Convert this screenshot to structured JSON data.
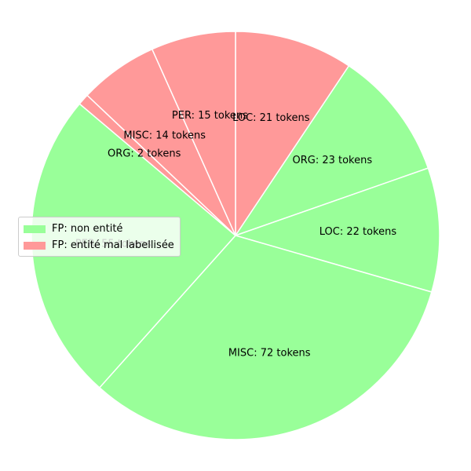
{
  "chart_data": {
    "type": "pie",
    "start_angle_deg": 90,
    "direction": "clockwise",
    "slices": [
      {
        "label": "LOC: 21 tokens",
        "value": 21,
        "group": 1
      },
      {
        "label": "ORG: 23 tokens",
        "value": 23,
        "group": 0
      },
      {
        "label": "LOC: 22 tokens",
        "value": 22,
        "group": 0
      },
      {
        "label": "MISC: 72 tokens",
        "value": 72,
        "group": 0
      },
      {
        "label": "PER: 55 tokens",
        "value": 55,
        "group": 0
      },
      {
        "label": "ORG: 2 tokens",
        "value": 2,
        "group": 1
      },
      {
        "label": "MISC: 14 tokens",
        "value": 14,
        "group": 1
      },
      {
        "label": "PER: 15 tokens",
        "value": 15,
        "group": 1
      }
    ],
    "legend": {
      "placement": "center-left",
      "entries": [
        {
          "label": "FP: non entité",
          "color": "#99ff99"
        },
        {
          "label": "FP: entité mal labellisée",
          "color": "#ff9999"
        }
      ]
    },
    "colors": [
      "#99ff99",
      "#ff9999"
    ],
    "edge_color": "#ffffff"
  }
}
